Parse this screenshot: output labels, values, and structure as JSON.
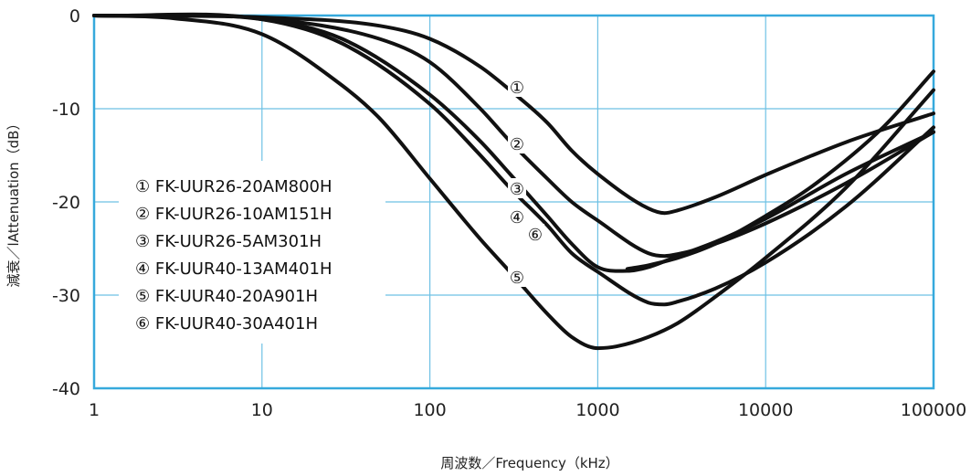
{
  "chart_data": {
    "type": "line",
    "xscale": "log",
    "xlim": [
      1,
      100000
    ],
    "ylim": [
      -40,
      0
    ],
    "grid": true,
    "xlabel": "周波数／Frequency（kHz）",
    "ylabel": "減衰／lAttenuation（dB）",
    "xticks": [
      "1",
      "10",
      "100",
      "1000",
      "10000",
      "100000"
    ],
    "yticks": [
      "0",
      "-10",
      "-20",
      "-30",
      "-40"
    ],
    "legend_position": "lower-left inside",
    "legend": [
      "① FK-UUR26-20AM800H",
      "② FK-UUR26-10AM151H",
      "③ FK-UUR26-5AM301H",
      "④ FK-UUR40-13AM401H",
      "⑤ FK-UUR40-20A901H",
      "⑥ FK-UUR40-30A401H"
    ],
    "series": [
      {
        "name": "FK-UUR26-20AM800H",
        "marker": "①",
        "x": [
          1,
          10,
          50,
          100,
          200,
          300,
          500,
          700,
          1000,
          2000,
          2500,
          3000,
          5000,
          10000,
          30000,
          100000
        ],
        "y": [
          0,
          -0.2,
          -1.1,
          -2.5,
          -5.5,
          -8,
          -11.5,
          -14.5,
          -17,
          -20.7,
          -21.2,
          -20.9,
          -19.5,
          -17.1,
          -13.6,
          -10.5
        ]
      },
      {
        "name": "FK-UUR26-10AM151H",
        "marker": "②",
        "x": [
          1,
          10,
          50,
          100,
          200,
          300,
          500,
          700,
          1000,
          2000,
          2500,
          3000,
          5000,
          10000,
          30000,
          100000
        ],
        "y": [
          0,
          -0.3,
          -2.5,
          -5,
          -10,
          -13.5,
          -17.5,
          -20,
          -22,
          -25.5,
          -25.8,
          -25.6,
          -24.5,
          -22.3,
          -18,
          -12.5
        ]
      },
      {
        "name": "FK-UUR26-5AM301H",
        "marker": "③",
        "x": [
          1,
          10,
          30,
          100,
          200,
          300,
          500,
          700,
          1000,
          1500,
          2000,
          3000,
          5000,
          10000,
          30000,
          100000
        ],
        "y": [
          0,
          -0.4,
          -2.5,
          -8.5,
          -13.5,
          -17,
          -21.5,
          -24.5,
          -27,
          -27.4,
          -27,
          -25.8,
          -24.3,
          -21.8,
          -17,
          -12.5
        ]
      },
      {
        "name": "FK-UUR40-13AM401H",
        "marker": "④",
        "x": [
          1,
          10,
          30,
          100,
          200,
          300,
          500,
          700,
          1000,
          2000,
          2500,
          3000,
          5000,
          10000,
          30000,
          100000
        ],
        "y": [
          0,
          -0.4,
          -3,
          -9.5,
          -15,
          -18.5,
          -22.5,
          -25.5,
          -27.5,
          -30.8,
          -31,
          -30.7,
          -29.3,
          -26.5,
          -20.5,
          -12
        ]
      },
      {
        "name": "FK-UUR40-20A901H",
        "marker": "⑤",
        "x": [
          1,
          3,
          10,
          30,
          50,
          100,
          200,
          300,
          500,
          700,
          1000,
          1300,
          2000,
          3000,
          5000,
          10000,
          30000,
          100000
        ],
        "y": [
          0,
          -0.3,
          -2,
          -7.5,
          -11,
          -17.5,
          -24,
          -27.5,
          -32,
          -34.5,
          -35.7,
          -35.5,
          -34.5,
          -33,
          -30.2,
          -26,
          -18.5,
          -8
        ]
      },
      {
        "name": "FK-UUR40-30A401H",
        "marker": "⑥",
        "x": [
          1500,
          2000,
          3000,
          5000,
          10000,
          20000,
          50000,
          100000
        ],
        "y": [
          -27.2,
          -26.8,
          -26,
          -24.5,
          -21.5,
          -18,
          -12,
          -6
        ]
      }
    ]
  }
}
